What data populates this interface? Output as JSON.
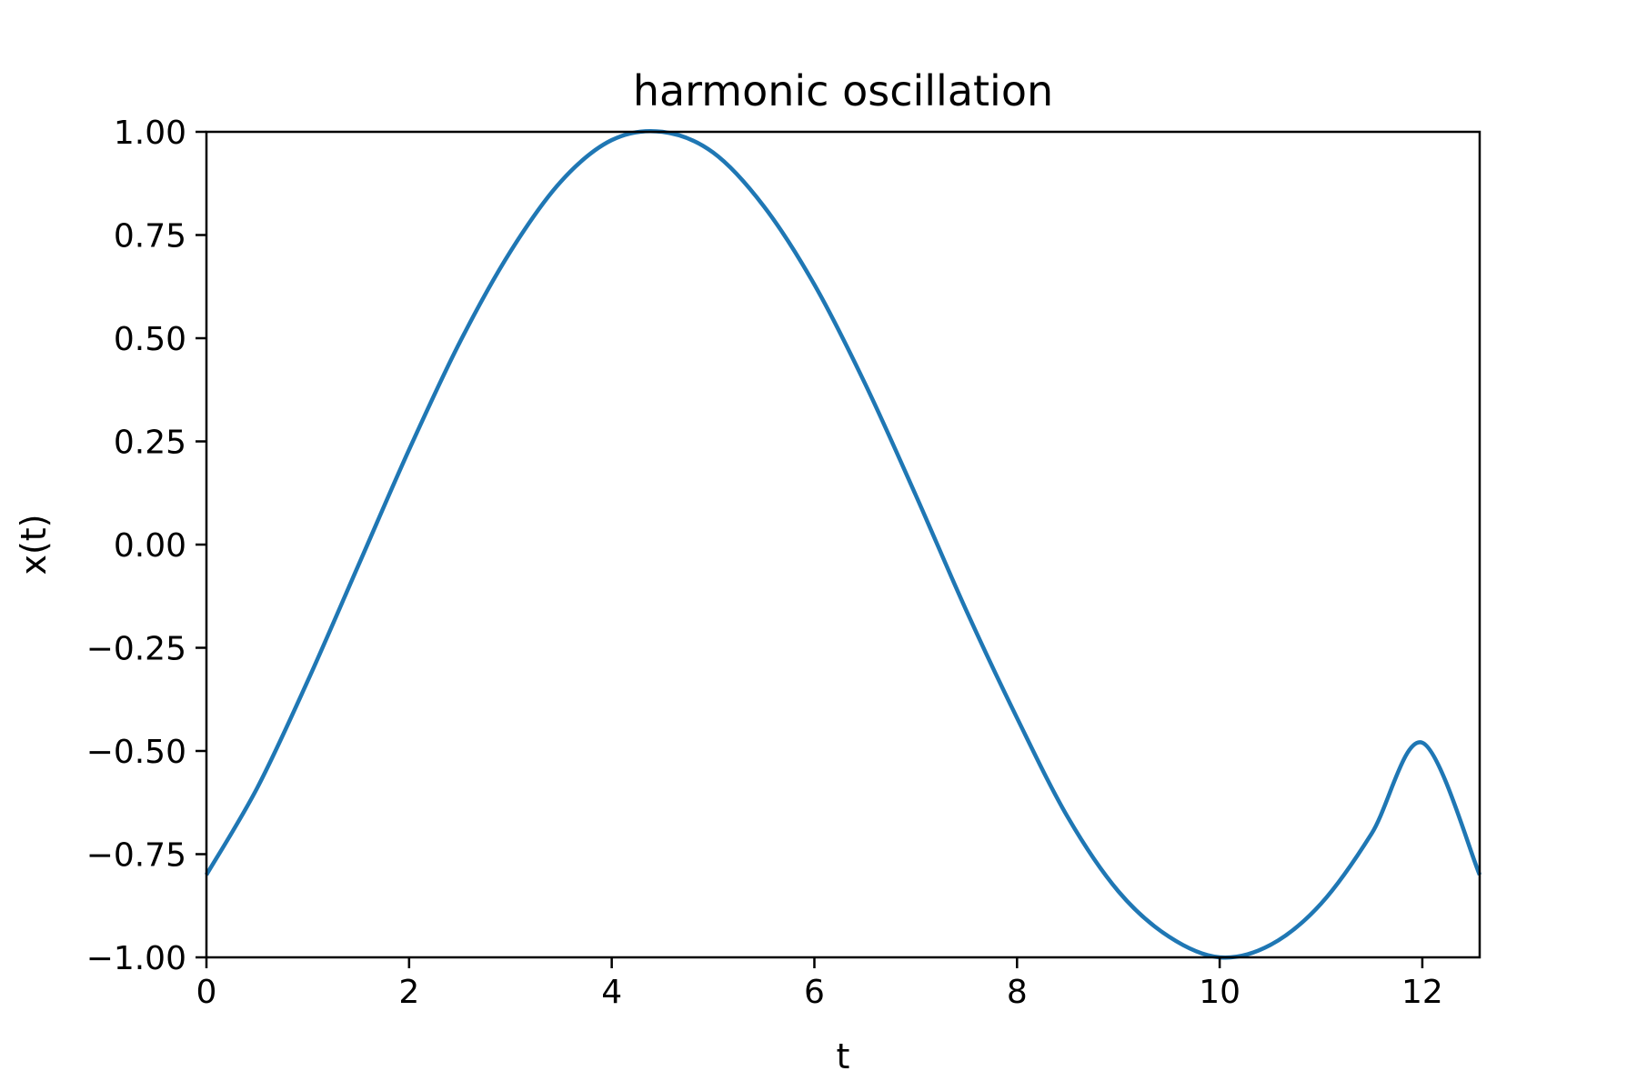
{
  "chart_data": {
    "type": "line",
    "title": "harmonic oscillation",
    "xlabel": "t",
    "ylabel": "x(t)",
    "xlim": [
      0,
      12.566
    ],
    "ylim": [
      -1.0,
      1.0
    ],
    "x_ticks": [
      0,
      2,
      4,
      6,
      8,
      10,
      12
    ],
    "x_tick_labels": [
      "0",
      "2",
      "4",
      "6",
      "8",
      "10",
      "12"
    ],
    "y_ticks": [
      1.0,
      0.75,
      0.5,
      0.25,
      0.0,
      -0.25,
      -0.5,
      -0.75,
      -1.0
    ],
    "y_tick_labels": [
      "1.00",
      "0.75",
      "0.50",
      "0.25",
      "0.00",
      "−0.25",
      "−0.50",
      "−0.75",
      "−1.00"
    ],
    "grid": false,
    "legend": "none",
    "series": [
      {
        "color": "#1f77b4",
        "x": [
          0,
          0.5,
          1.0,
          1.5,
          2.0,
          2.5,
          3.0,
          3.5,
          4.0,
          4.5,
          5.0,
          5.5,
          6.0,
          6.5,
          7.0,
          7.5,
          8.0,
          8.5,
          9.0,
          9.5,
          10.0,
          10.5,
          11.0,
          11.5,
          12.0,
          12.566
        ],
        "y": [
          -0.8,
          -0.59,
          -0.33,
          -0.05,
          0.23,
          0.49,
          0.71,
          0.88,
          0.98,
          1.0,
          0.95,
          0.82,
          0.63,
          0.39,
          0.12,
          -0.16,
          -0.42,
          -0.66,
          -0.84,
          -0.95,
          -1.0,
          -0.97,
          -0.87,
          -0.7,
          -0.48,
          -0.8
        ]
      }
    ]
  }
}
